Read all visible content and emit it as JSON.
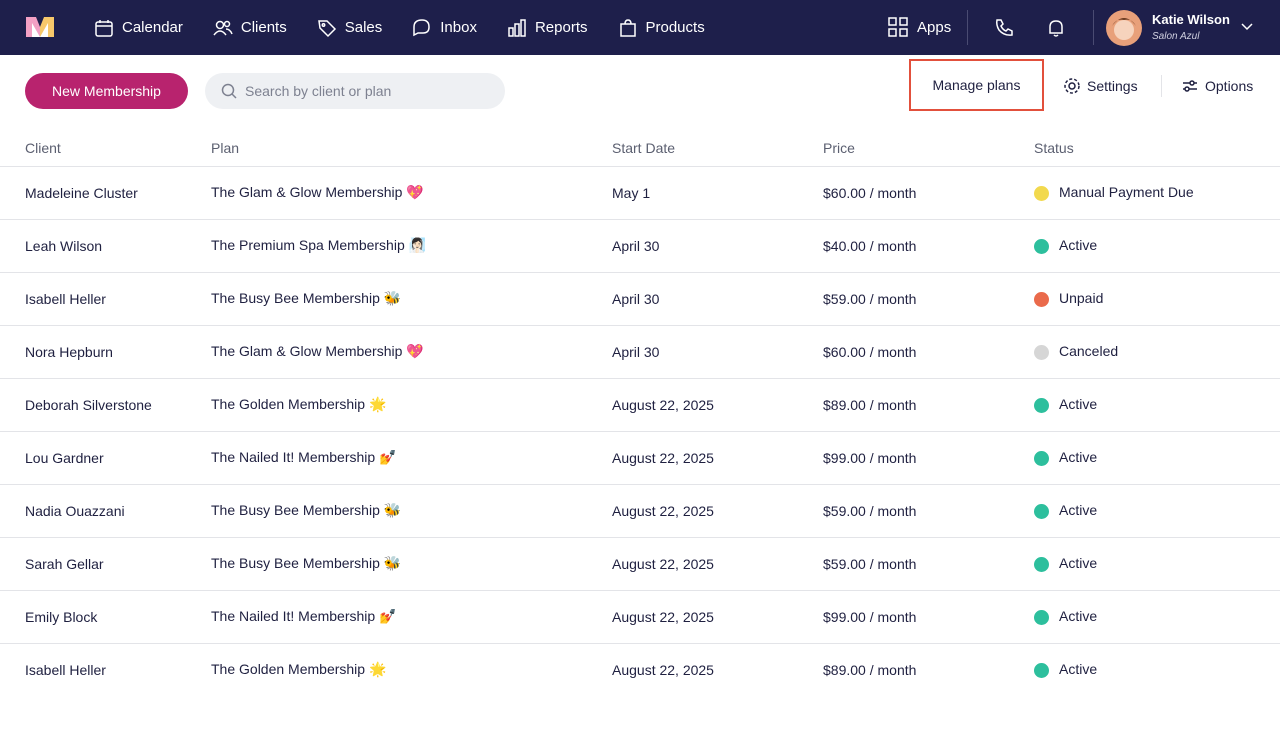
{
  "nav": {
    "items": [
      "Calendar",
      "Clients",
      "Sales",
      "Inbox",
      "Reports",
      "Products"
    ],
    "apps": "Apps",
    "user": {
      "name": "Katie Wilson",
      "salon": "Salon Azul"
    }
  },
  "toolbar": {
    "new_button": "New Membership",
    "search_placeholder": "Search by client or plan",
    "manage_plans": "Manage plans",
    "settings": "Settings",
    "options": "Options"
  },
  "table": {
    "columns": [
      "Client",
      "Plan",
      "Start Date",
      "Price",
      "Status"
    ],
    "rows": [
      {
        "client": "Madeleine Cluster",
        "plan": "The Glam & Glow Membership 💖",
        "start": "May 1",
        "price": "$60.00 / month",
        "status": {
          "label": "Manual Payment Due",
          "color": "#f2d94e"
        }
      },
      {
        "client": "Leah Wilson",
        "plan": "The Premium Spa Membership 🧖🏻‍♀️",
        "start": "April 30",
        "price": "$40.00 / month",
        "status": {
          "label": "Active",
          "color": "#2dbf9d"
        }
      },
      {
        "client": "Isabell Heller",
        "plan": "The Busy Bee Membership 🐝",
        "start": "April 30",
        "price": "$59.00 / month",
        "status": {
          "label": "Unpaid",
          "color": "#ea6a4b"
        }
      },
      {
        "client": "Nora Hepburn",
        "plan": "The Glam & Glow Membership 💖",
        "start": "April 30",
        "price": "$60.00 / month",
        "status": {
          "label": "Canceled",
          "color": "#d6d6d6"
        }
      },
      {
        "client": "Deborah Silverstone",
        "plan": "The Golden Membership 🌟",
        "start": "August 22, 2025",
        "price": "$89.00 / month",
        "status": {
          "label": "Active",
          "color": "#2dbf9d"
        }
      },
      {
        "client": "Lou Gardner",
        "plan": "The Nailed It! Membership 💅",
        "start": "August 22, 2025",
        "price": "$99.00 / month",
        "status": {
          "label": "Active",
          "color": "#2dbf9d"
        }
      },
      {
        "client": "Nadia Ouazzani",
        "plan": "The Busy Bee Membership 🐝",
        "start": "August 22, 2025",
        "price": "$59.00 / month",
        "status": {
          "label": "Active",
          "color": "#2dbf9d"
        }
      },
      {
        "client": "Sarah Gellar",
        "plan": "The Busy Bee Membership 🐝",
        "start": "August 22, 2025",
        "price": "$59.00 / month",
        "status": {
          "label": "Active",
          "color": "#2dbf9d"
        }
      },
      {
        "client": "Emily Block",
        "plan": "The Nailed It! Membership 💅",
        "start": "August 22, 2025",
        "price": "$99.00 / month",
        "status": {
          "label": "Active",
          "color": "#2dbf9d"
        }
      },
      {
        "client": "Isabell Heller",
        "plan": "The Golden Membership 🌟",
        "start": "August 22, 2025",
        "price": "$89.00 / month",
        "status": {
          "label": "Active",
          "color": "#2dbf9d"
        }
      }
    ]
  }
}
